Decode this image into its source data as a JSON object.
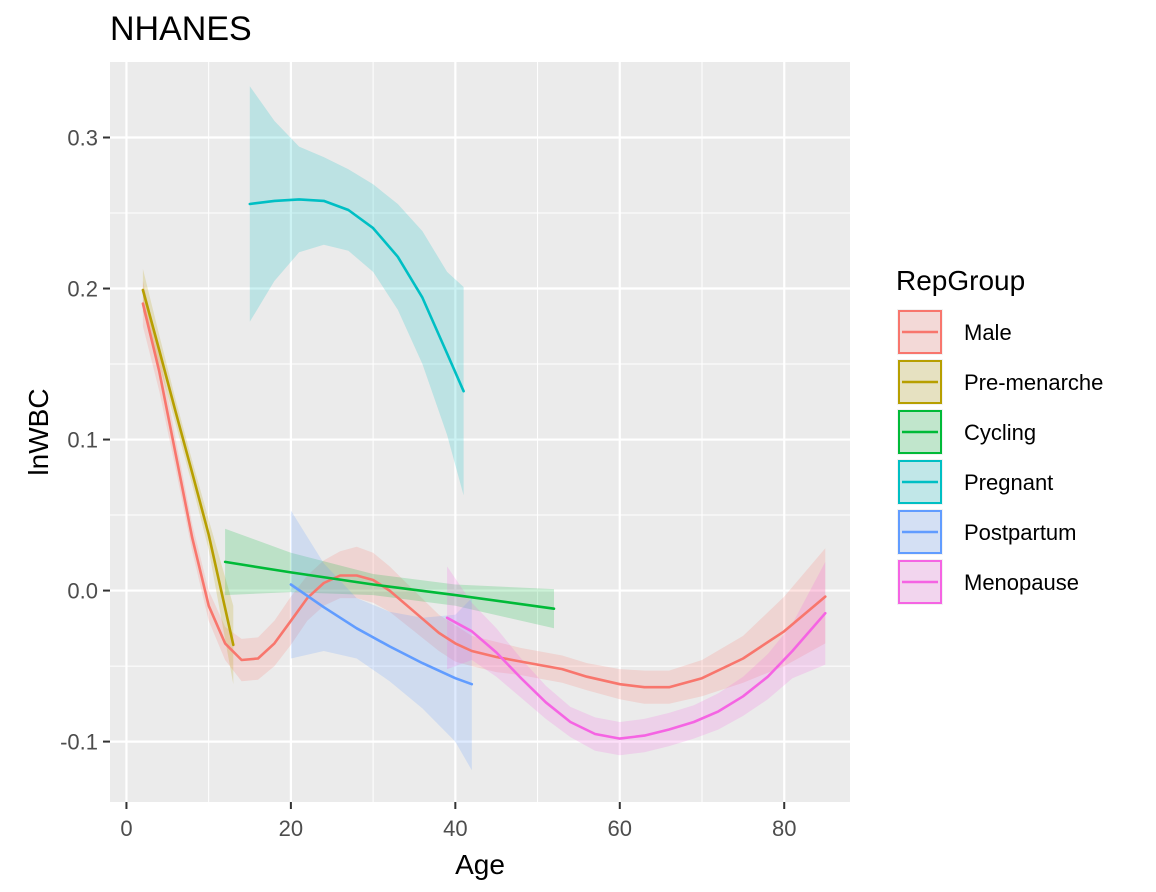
{
  "chart_data": {
    "type": "line",
    "title": "NHANES",
    "xlabel": "Age",
    "ylabel": "lnWBC",
    "xlim": [
      -2,
      88
    ],
    "ylim": [
      -0.14,
      0.35
    ],
    "xticks": [
      0,
      20,
      40,
      60,
      80
    ],
    "xtick_labels": [
      "0",
      "20",
      "40",
      "60",
      "80"
    ],
    "yticks": [
      -0.1,
      0.0,
      0.1,
      0.2,
      0.3
    ],
    "ytick_labels": [
      "-0.1",
      "0.0",
      "0.1",
      "0.2",
      "0.3"
    ],
    "grid": true,
    "panel_background": "#ebebeb",
    "legend": {
      "title": "RepGroup",
      "position": "right"
    },
    "series": [
      {
        "name": "Male",
        "color": "#f8766d",
        "x": [
          2,
          4,
          6,
          8,
          10,
          12,
          14,
          16,
          18,
          20,
          22,
          24,
          26,
          28,
          30,
          32,
          35,
          38,
          40,
          42,
          45,
          48,
          50,
          53,
          56,
          60,
          63,
          66,
          70,
          75,
          80,
          85
        ],
        "y": [
          0.19,
          0.145,
          0.09,
          0.035,
          -0.01,
          -0.035,
          -0.046,
          -0.045,
          -0.035,
          -0.02,
          -0.005,
          0.005,
          0.01,
          0.01,
          0.007,
          0.0,
          -0.014,
          -0.028,
          -0.035,
          -0.04,
          -0.044,
          -0.047,
          -0.049,
          -0.052,
          -0.057,
          -0.062,
          -0.064,
          -0.064,
          -0.058,
          -0.045,
          -0.027,
          -0.004
        ],
        "lower": [
          0.175,
          0.132,
          0.08,
          0.026,
          -0.02,
          -0.046,
          -0.06,
          -0.059,
          -0.05,
          -0.036,
          -0.02,
          -0.01,
          -0.005,
          -0.005,
          -0.008,
          -0.014,
          -0.027,
          -0.04,
          -0.047,
          -0.05,
          -0.054,
          -0.056,
          -0.058,
          -0.061,
          -0.066,
          -0.072,
          -0.075,
          -0.075,
          -0.07,
          -0.061,
          -0.05,
          -0.035
        ],
        "upper": [
          0.205,
          0.158,
          0.1,
          0.044,
          0.0,
          -0.024,
          -0.032,
          -0.031,
          -0.02,
          -0.004,
          0.01,
          0.02,
          0.026,
          0.029,
          0.025,
          0.016,
          0.0,
          -0.016,
          -0.023,
          -0.03,
          -0.034,
          -0.038,
          -0.04,
          -0.043,
          -0.048,
          -0.052,
          -0.053,
          -0.053,
          -0.046,
          -0.03,
          -0.004,
          0.028
        ]
      },
      {
        "name": "Pre-menarche",
        "color": "#b79f00",
        "x": [
          2,
          4,
          6,
          8,
          10,
          13
        ],
        "y": [
          0.199,
          0.159,
          0.118,
          0.078,
          0.037,
          -0.036
        ],
        "lower": [
          0.185,
          0.149,
          0.11,
          0.07,
          0.027,
          -0.062
        ],
        "upper": [
          0.213,
          0.169,
          0.126,
          0.086,
          0.047,
          -0.01
        ]
      },
      {
        "name": "Cycling",
        "color": "#00ba38",
        "x": [
          12,
          20,
          30,
          40,
          52
        ],
        "y": [
          0.019,
          0.012,
          0.004,
          -0.003,
          -0.012
        ],
        "lower": [
          -0.003,
          -0.001,
          -0.003,
          -0.01,
          -0.025
        ],
        "upper": [
          0.041,
          0.025,
          0.011,
          0.004,
          0.001
        ]
      },
      {
        "name": "Pregnant",
        "color": "#00bfc4",
        "x": [
          15,
          18,
          21,
          24,
          27,
          30,
          33,
          36,
          39,
          41
        ],
        "y": [
          0.256,
          0.258,
          0.259,
          0.258,
          0.252,
          0.24,
          0.221,
          0.194,
          0.157,
          0.132
        ],
        "lower": [
          0.178,
          0.205,
          0.224,
          0.229,
          0.225,
          0.211,
          0.186,
          0.15,
          0.103,
          0.063
        ],
        "upper": [
          0.334,
          0.311,
          0.294,
          0.287,
          0.279,
          0.269,
          0.256,
          0.238,
          0.211,
          0.201
        ]
      },
      {
        "name": "Postpartum",
        "color": "#619cff",
        "x": [
          20,
          24,
          28,
          32,
          36,
          40,
          42
        ],
        "y": [
          0.004,
          -0.011,
          -0.025,
          -0.037,
          -0.048,
          -0.058,
          -0.062
        ],
        "lower": [
          -0.045,
          -0.04,
          -0.045,
          -0.06,
          -0.078,
          -0.1,
          -0.119
        ],
        "upper": [
          0.053,
          0.018,
          -0.005,
          -0.014,
          -0.018,
          -0.016,
          -0.005
        ]
      },
      {
        "name": "Menopause",
        "color": "#f564e3",
        "x": [
          39,
          42,
          45,
          48,
          51,
          54,
          57,
          60,
          63,
          66,
          69,
          72,
          75,
          78,
          81,
          85
        ],
        "y": [
          -0.018,
          -0.027,
          -0.041,
          -0.058,
          -0.074,
          -0.087,
          -0.095,
          -0.098,
          -0.096,
          -0.092,
          -0.087,
          -0.08,
          -0.07,
          -0.057,
          -0.04,
          -0.015
        ],
        "lower": [
          -0.052,
          -0.046,
          -0.057,
          -0.071,
          -0.085,
          -0.097,
          -0.106,
          -0.109,
          -0.107,
          -0.103,
          -0.098,
          -0.092,
          -0.083,
          -0.072,
          -0.058,
          -0.049
        ],
        "upper": [
          0.016,
          -0.008,
          -0.025,
          -0.045,
          -0.063,
          -0.077,
          -0.084,
          -0.087,
          -0.085,
          -0.081,
          -0.076,
          -0.068,
          -0.057,
          -0.042,
          -0.022,
          0.019
        ]
      }
    ]
  }
}
